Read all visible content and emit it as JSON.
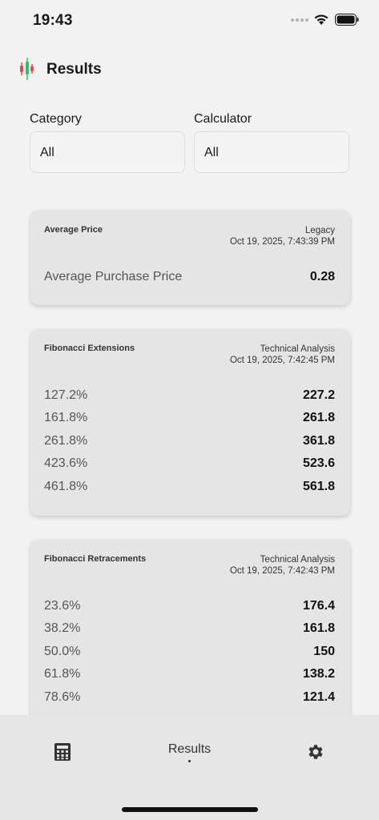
{
  "status_bar": {
    "time": "19:43"
  },
  "header": {
    "title": "Results",
    "logo_icon": "candlestick-chart-icon"
  },
  "filters": {
    "category": {
      "label": "Category",
      "value": "All"
    },
    "calculator": {
      "label": "Calculator",
      "value": "All"
    }
  },
  "cards": [
    {
      "title": "Average Price",
      "source": "Legacy",
      "timestamp": "Oct 19, 2025, 7:43:39 PM",
      "rows": [
        {
          "label": "Average Purchase Price",
          "value": "0.28"
        }
      ]
    },
    {
      "title": "Fibonacci Extensions",
      "source": "Technical Analysis",
      "timestamp": "Oct 19, 2025, 7:42:45 PM",
      "rows": [
        {
          "label": "127.2%",
          "value": "227.2"
        },
        {
          "label": "161.8%",
          "value": "261.8"
        },
        {
          "label": "261.8%",
          "value": "361.8"
        },
        {
          "label": "423.6%",
          "value": "523.6"
        },
        {
          "label": "461.8%",
          "value": "561.8"
        }
      ]
    },
    {
      "title": "Fibonacci Retracements",
      "source": "Technical Analysis",
      "timestamp": "Oct 19, 2025, 7:42:43 PM",
      "rows": [
        {
          "label": "23.6%",
          "value": "176.4"
        },
        {
          "label": "38.2%",
          "value": "161.8"
        },
        {
          "label": "50.0%",
          "value": "150"
        },
        {
          "label": "61.8%",
          "value": "138.2"
        },
        {
          "label": "78.6%",
          "value": "121.4"
        }
      ]
    }
  ],
  "tab_bar": {
    "calculator_icon": "calculator-icon",
    "results_label": "Results",
    "settings_icon": "gear-icon"
  },
  "colors": {
    "background": "#f2f2f2",
    "card": "#e5e5e5",
    "tab_bar": "#e6e6e6",
    "logo_red": "#e5484d",
    "logo_green": "#2fbf71"
  }
}
